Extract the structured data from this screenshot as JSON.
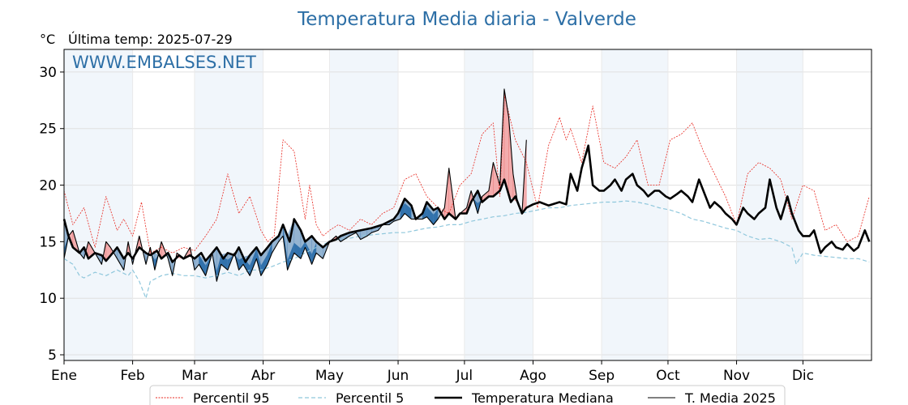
{
  "header": {
    "title": "Temperatura Media diaria - Valverde",
    "unit": "°C",
    "last_temp": "Última temp: 2025-07-29",
    "watermark": "WWW.EMBALSES.NET"
  },
  "colors": {
    "title": "#2d6fa6",
    "p95": "#e8271f",
    "p5": "#8fc7dc",
    "median": "#000000",
    "current": "#000000",
    "fill_above": "#f4a9a9",
    "fill_below": "#8fb0cf",
    "fill_below_dark": "#2166a6",
    "month_band": "#e7f0f8"
  },
  "chart_data": {
    "type": "line",
    "title": "Temperatura Media diaria - Valverde",
    "xlabel": "",
    "ylabel": "°C",
    "xlim": [
      1,
      366
    ],
    "ylim": [
      4.5,
      32
    ],
    "yticks": [
      5,
      10,
      15,
      20,
      25,
      30
    ],
    "x_ticks": [
      {
        "label": "Ene",
        "day": 1
      },
      {
        "label": "Feb",
        "day": 32
      },
      {
        "label": "Mar",
        "day": 60
      },
      {
        "label": "Abr",
        "day": 91
      },
      {
        "label": "May",
        "day": 121
      },
      {
        "label": "Jun",
        "day": 152
      },
      {
        "label": "Jul",
        "day": 182
      },
      {
        "label": "Ago",
        "day": 213
      },
      {
        "label": "Sep",
        "day": 244
      },
      {
        "label": "Oct",
        "day": 274
      },
      {
        "label": "Nov",
        "day": 305
      },
      {
        "label": "Dic",
        "day": 335
      }
    ],
    "shaded_months": [
      [
        1,
        32
      ],
      [
        60,
        91
      ],
      [
        121,
        152
      ],
      [
        182,
        213
      ],
      [
        244,
        274
      ],
      [
        305,
        335
      ]
    ],
    "grid": true,
    "legend_position": "bottom",
    "legend": [
      "Percentil 95",
      "Percentil 5",
      "Temperatura Mediana",
      "T. Media 2025"
    ],
    "series": [
      {
        "name": "Percentil 95",
        "style": "dotted-thin-red",
        "x": [
          1,
          5,
          10,
          15,
          20,
          25,
          28,
          32,
          36,
          40,
          45,
          50,
          55,
          60,
          65,
          70,
          75,
          80,
          85,
          90,
          93,
          96,
          100,
          105,
          110,
          112,
          115,
          118,
          121,
          125,
          130,
          135,
          140,
          145,
          150,
          155,
          160,
          165,
          170,
          175,
          180,
          185,
          190,
          195,
          198,
          200,
          205,
          210,
          215,
          220,
          225,
          228,
          230,
          235,
          240,
          245,
          250,
          255,
          260,
          265,
          270,
          275,
          280,
          285,
          290,
          295,
          300,
          305,
          310,
          315,
          320,
          325,
          330,
          335,
          340,
          345,
          350,
          355,
          360,
          365
        ],
        "values": [
          19.5,
          16.5,
          18.0,
          14.5,
          19.0,
          16.0,
          17.0,
          15.5,
          18.5,
          14.0,
          14.5,
          14.0,
          14.5,
          14.2,
          15.5,
          17.0,
          21.0,
          17.5,
          19.0,
          16.0,
          15.0,
          15.5,
          24.0,
          23.0,
          17.0,
          20.0,
          16.5,
          15.5,
          16.0,
          16.5,
          16.0,
          17.0,
          16.5,
          17.5,
          18.0,
          20.5,
          21.0,
          19.0,
          18.0,
          17.5,
          20.0,
          21.0,
          24.5,
          25.5,
          19.0,
          28.0,
          24.0,
          22.0,
          18.0,
          23.5,
          26.0,
          24.0,
          25.0,
          22.0,
          27.0,
          22.0,
          21.5,
          22.5,
          24.0,
          20.0,
          20.0,
          24.0,
          24.5,
          25.5,
          23.0,
          21.0,
          19.0,
          16.5,
          21.0,
          22.0,
          21.5,
          20.5,
          17.0,
          20.0,
          19.5,
          16.0,
          16.5,
          15.0,
          15.5,
          19.0
        ]
      },
      {
        "name": "Percentil 5",
        "style": "dashed-thin-lightblue",
        "x": [
          1,
          5,
          8,
          10,
          15,
          20,
          25,
          30,
          32,
          35,
          38,
          40,
          45,
          50,
          55,
          60,
          65,
          70,
          75,
          80,
          85,
          90,
          95,
          100,
          105,
          110,
          115,
          121,
          125,
          130,
          135,
          140,
          145,
          150,
          155,
          160,
          165,
          170,
          175,
          180,
          185,
          190,
          195,
          200,
          205,
          210,
          215,
          220,
          225,
          230,
          235,
          240,
          245,
          250,
          255,
          260,
          265,
          270,
          275,
          280,
          285,
          290,
          295,
          300,
          305,
          310,
          315,
          320,
          325,
          330,
          332,
          335,
          340,
          345,
          350,
          355,
          360,
          365
        ],
        "values": [
          13.5,
          13.0,
          12.0,
          11.8,
          12.3,
          12.0,
          12.5,
          12.0,
          12.5,
          11.5,
          10.0,
          11.5,
          12.0,
          12.2,
          12.0,
          12.0,
          11.8,
          12.0,
          12.3,
          12.0,
          12.5,
          12.5,
          12.8,
          13.2,
          13.5,
          14.0,
          14.5,
          15.0,
          15.2,
          15.3,
          15.5,
          15.6,
          15.7,
          15.8,
          15.8,
          16.0,
          16.2,
          16.3,
          16.5,
          16.5,
          16.8,
          17.0,
          17.2,
          17.3,
          17.5,
          17.6,
          17.8,
          18.0,
          18.0,
          18.2,
          18.3,
          18.4,
          18.5,
          18.5,
          18.6,
          18.5,
          18.3,
          18.0,
          17.8,
          17.5,
          17.0,
          16.8,
          16.5,
          16.2,
          16.0,
          15.5,
          15.2,
          15.3,
          15.0,
          14.5,
          13.0,
          14.0,
          13.8,
          13.7,
          13.6,
          13.5,
          13.5,
          13.2
        ]
      },
      {
        "name": "Temperatura Mediana",
        "style": "solid-thick-black",
        "x": [
          1,
          3,
          5,
          8,
          10,
          12,
          15,
          18,
          20,
          23,
          25,
          28,
          30,
          32,
          35,
          38,
          40,
          43,
          45,
          48,
          50,
          53,
          55,
          58,
          60,
          63,
          65,
          68,
          70,
          73,
          75,
          78,
          80,
          83,
          85,
          88,
          90,
          93,
          95,
          98,
          100,
          103,
          105,
          108,
          110,
          113,
          115,
          118,
          121,
          124,
          126,
          130,
          135,
          140,
          145,
          150,
          152,
          155,
          158,
          160,
          163,
          165,
          168,
          170,
          173,
          175,
          178,
          180,
          183,
          185,
          188,
          190,
          193,
          195,
          198,
          200,
          203,
          205,
          208,
          210,
          213,
          216,
          220,
          225,
          228,
          230,
          233,
          235,
          238,
          240,
          243,
          245,
          248,
          250,
          253,
          255,
          258,
          260,
          263,
          265,
          268,
          270,
          273,
          275,
          278,
          280,
          283,
          285,
          288,
          290,
          293,
          295,
          298,
          300,
          303,
          305,
          308,
          310,
          313,
          315,
          318,
          320,
          323,
          325,
          328,
          330,
          333,
          335,
          338,
          340,
          343,
          345,
          348,
          350,
          353,
          355,
          358,
          360,
          363,
          365
        ],
        "values": [
          17.0,
          15.5,
          14.5,
          14.0,
          14.5,
          13.5,
          14.0,
          13.8,
          13.3,
          14.0,
          14.5,
          13.5,
          14.0,
          13.5,
          14.5,
          14.0,
          13.8,
          14.2,
          13.5,
          14.0,
          13.2,
          13.8,
          13.5,
          13.8,
          13.5,
          14.0,
          13.3,
          14.0,
          14.5,
          13.5,
          14.0,
          13.8,
          14.5,
          13.2,
          13.8,
          14.5,
          13.8,
          14.5,
          15.0,
          15.5,
          16.5,
          15.0,
          17.0,
          16.0,
          15.0,
          15.5,
          15.0,
          14.5,
          15.0,
          15.2,
          15.5,
          15.8,
          16.0,
          16.2,
          16.5,
          17.0,
          17.5,
          18.8,
          18.2,
          17.0,
          17.5,
          18.5,
          17.8,
          18.0,
          17.0,
          17.5,
          17.0,
          17.5,
          17.5,
          18.5,
          19.5,
          18.5,
          19.0,
          19.0,
          19.5,
          20.5,
          18.5,
          19.0,
          17.5,
          18.0,
          18.3,
          18.5,
          18.2,
          18.5,
          18.3,
          21.0,
          19.5,
          21.5,
          23.5,
          20.0,
          19.5,
          19.5,
          20.0,
          20.5,
          19.5,
          20.5,
          21.0,
          20.0,
          19.5,
          19.0,
          19.5,
          19.5,
          19.0,
          18.8,
          19.2,
          19.5,
          19.0,
          18.5,
          20.5,
          19.5,
          18.0,
          18.5,
          18.0,
          17.5,
          17.0,
          16.5,
          18.0,
          17.5,
          17.0,
          17.5,
          18.0,
          20.5,
          18.0,
          17.0,
          19.0,
          17.5,
          16.0,
          15.5,
          15.5,
          16.0,
          14.0,
          14.5,
          15.0,
          14.5,
          14.3,
          14.8,
          14.2,
          14.5,
          16.0,
          15.0
        ]
      },
      {
        "name": "T. Media 2025",
        "style": "solid-thin-black",
        "x": [
          1,
          3,
          5,
          8,
          10,
          12,
          15,
          18,
          20,
          22,
          25,
          28,
          30,
          32,
          35,
          38,
          40,
          42,
          45,
          48,
          50,
          52,
          55,
          58,
          60,
          62,
          65,
          68,
          70,
          72,
          75,
          78,
          80,
          82,
          85,
          88,
          90,
          93,
          95,
          98,
          100,
          102,
          105,
          108,
          110,
          113,
          115,
          118,
          121,
          124,
          126,
          130,
          133,
          135,
          138,
          140,
          143,
          145,
          148,
          150,
          153,
          155,
          158,
          160,
          163,
          165,
          168,
          170,
          173,
          175,
          178,
          180,
          183,
          185,
          188,
          190,
          193,
          195,
          198,
          200,
          202,
          204,
          206,
          208,
          210
        ],
        "values": [
          13.5,
          15.5,
          16.0,
          14.0,
          13.5,
          15.0,
          14.0,
          13.0,
          15.0,
          14.5,
          13.5,
          12.5,
          15.0,
          13.0,
          15.5,
          13.0,
          14.5,
          12.5,
          15.0,
          13.5,
          12.0,
          14.0,
          13.5,
          14.5,
          12.5,
          13.0,
          12.0,
          14.0,
          11.5,
          13.0,
          12.5,
          14.0,
          12.5,
          13.0,
          12.0,
          13.5,
          12.0,
          13.0,
          14.0,
          15.0,
          15.5,
          12.5,
          14.0,
          13.5,
          14.5,
          13.0,
          14.0,
          13.5,
          15.0,
          15.5,
          15.0,
          15.5,
          15.8,
          15.2,
          15.5,
          15.8,
          16.0,
          16.5,
          16.5,
          16.8,
          17.0,
          17.5,
          17.0,
          17.0,
          17.0,
          17.2,
          16.5,
          17.0,
          18.0,
          21.5,
          17.0,
          17.5,
          18.0,
          19.5,
          17.5,
          19.0,
          19.5,
          22.0,
          20.0,
          28.5,
          26.0,
          21.0,
          18.5,
          17.5,
          24.0
        ]
      }
    ]
  }
}
